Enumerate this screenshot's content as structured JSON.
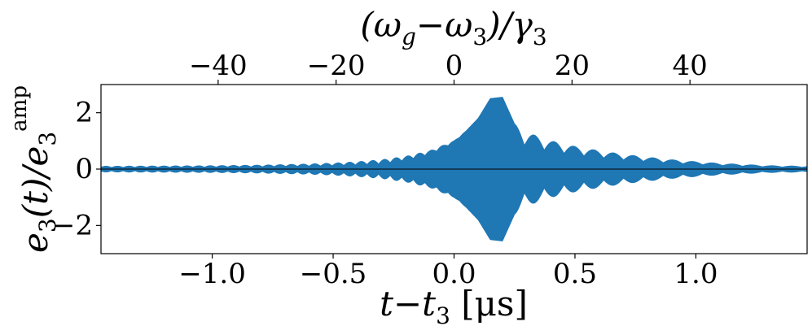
{
  "chart_data": {
    "type": "area",
    "series": [
      {
        "description_of_shape": "oscillating envelope filled symmetric around zero",
        "color": "#1f77b4",
        "envelope": {
          "t": [
            -1.45,
            -1.2,
            -1.0,
            -0.8,
            -0.6,
            -0.5,
            -0.4,
            -0.3,
            -0.2,
            -0.1,
            0.0,
            0.05,
            0.1,
            0.15,
            0.2,
            0.25,
            0.3,
            0.4,
            0.5,
            0.6,
            0.7,
            0.8,
            0.9,
            1.0,
            1.1,
            1.2,
            1.3,
            1.45
          ],
          "amp": [
            0.1,
            0.11,
            0.12,
            0.14,
            0.18,
            0.21,
            0.26,
            0.33,
            0.45,
            0.65,
            1.0,
            1.35,
            1.8,
            2.5,
            2.55,
            1.6,
            1.3,
            1.0,
            0.8,
            0.65,
            0.52,
            0.42,
            0.33,
            0.26,
            0.2,
            0.16,
            0.12,
            0.1
          ]
        }
      }
    ],
    "bottom_axis": {
      "xlabel": "t−t₃ [μs]",
      "xlim": [
        -1.46,
        1.46
      ],
      "ticks": [
        -1.0,
        -0.5,
        0.0,
        0.5,
        1.0
      ],
      "tick_labels": [
        "−1.0",
        "−0.5",
        "0.0",
        "0.5",
        "1.0"
      ]
    },
    "top_axis": {
      "xlabel": "(ωg−ω₃)/γ₃",
      "ticks": [
        -40,
        -20,
        0,
        20,
        40
      ],
      "tick_labels": [
        "−40",
        "−20",
        "0",
        "20",
        "40"
      ]
    },
    "left_axis": {
      "ylabel": "e₃(t)/e₃amp",
      "ylim": [
        -3.0,
        3.0
      ],
      "ticks": [
        -2,
        0,
        2
      ],
      "tick_labels": [
        "−2",
        "0",
        "2"
      ]
    },
    "zero_line": true,
    "grid": false
  }
}
